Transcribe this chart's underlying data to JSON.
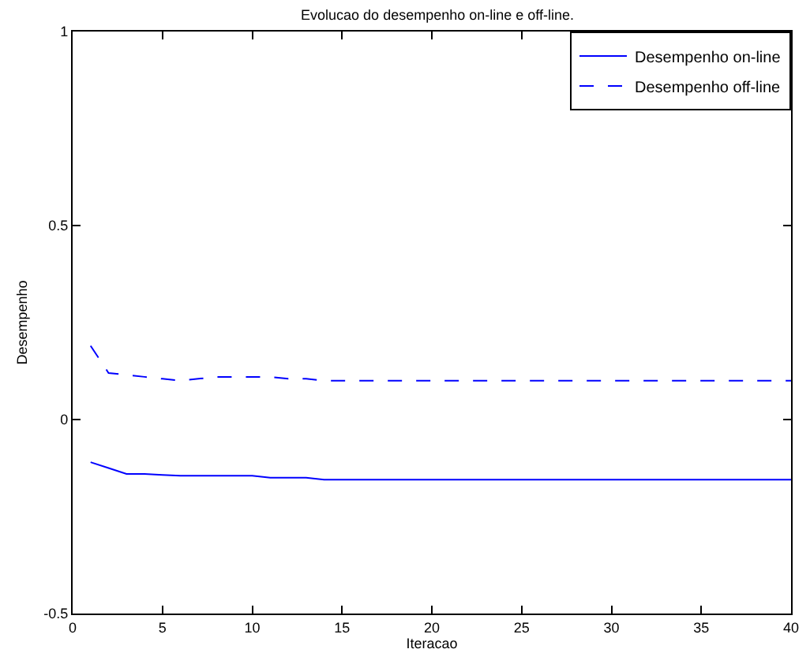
{
  "chart_data": {
    "type": "line",
    "title": "Evolucao do desempenho on-line e off-line.",
    "xlabel": "Iteracao",
    "ylabel": "Desempenho",
    "x": [
      1,
      2,
      3,
      4,
      5,
      6,
      7,
      8,
      9,
      10,
      11,
      12,
      13,
      14,
      15,
      20,
      25,
      30,
      35,
      40
    ],
    "series": [
      {
        "name": "Desempenho on-line",
        "color": "#0000ff",
        "line_style": "solid",
        "values": [
          -0.11,
          -0.125,
          -0.14,
          -0.14,
          -0.143,
          -0.145,
          -0.145,
          -0.145,
          -0.145,
          -0.145,
          -0.15,
          -0.15,
          -0.15,
          -0.155,
          -0.155,
          -0.155,
          -0.155,
          -0.155,
          -0.155,
          -0.155
        ]
      },
      {
        "name": "Desempenho off-line",
        "color": "#0000ff",
        "line_style": "dashed",
        "values": [
          0.19,
          0.12,
          0.115,
          0.11,
          0.105,
          0.1,
          0.105,
          0.11,
          0.11,
          0.11,
          0.11,
          0.105,
          0.105,
          0.1,
          0.1,
          0.1,
          0.1,
          0.1,
          0.1,
          0.1
        ]
      }
    ],
    "xlim": [
      0,
      40
    ],
    "xticks": [
      0,
      5,
      10,
      15,
      20,
      25,
      30,
      35,
      40
    ],
    "ylim": [
      -0.5,
      1
    ],
    "yticks": [
      -0.5,
      0,
      0.5,
      1
    ],
    "grid": false,
    "legend": "top right",
    "marker": "none"
  }
}
